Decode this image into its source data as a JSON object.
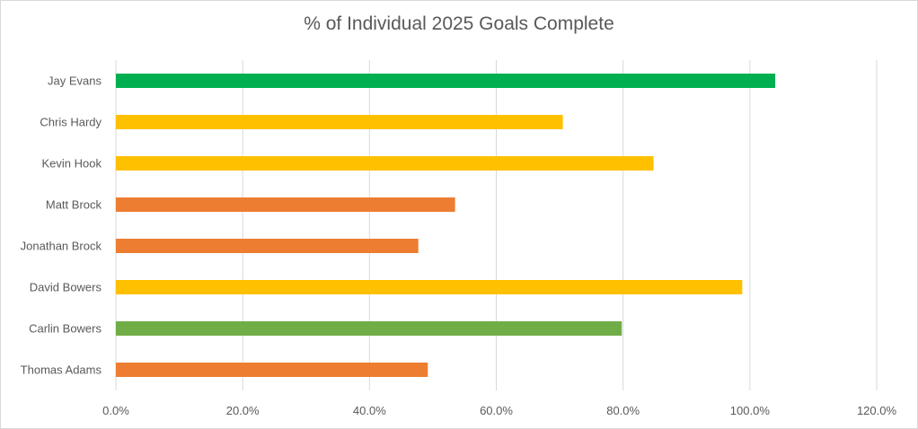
{
  "chart_data": {
    "type": "bar",
    "orientation": "horizontal",
    "title": "% of Individual 2025 Goals Complete",
    "xlabel": "",
    "ylabel": "",
    "xlim": [
      0,
      1.2
    ],
    "x_ticks": [
      0,
      0.2,
      0.4,
      0.6,
      0.8,
      1.0,
      1.2
    ],
    "x_tick_labels": [
      "0.0%",
      "20.0%",
      "40.0%",
      "60.0%",
      "80.0%",
      "100.0%",
      "120.0%"
    ],
    "grid": true,
    "legend": "none",
    "categories": [
      "Jay Evans",
      "Chris Hardy",
      "Kevin Hook",
      "Matt Brock",
      "Jonathan Brock",
      "David Bowers",
      "Carlin Bowers",
      "Thomas Adams"
    ],
    "values": [
      1.04,
      0.705,
      0.848,
      0.535,
      0.477,
      0.988,
      0.798,
      0.492
    ],
    "bar_colors": [
      "#00b050",
      "#ffc000",
      "#ffc000",
      "#ed7d31",
      "#ed7d31",
      "#ffc000",
      "#70ad47",
      "#ed7d31"
    ]
  }
}
